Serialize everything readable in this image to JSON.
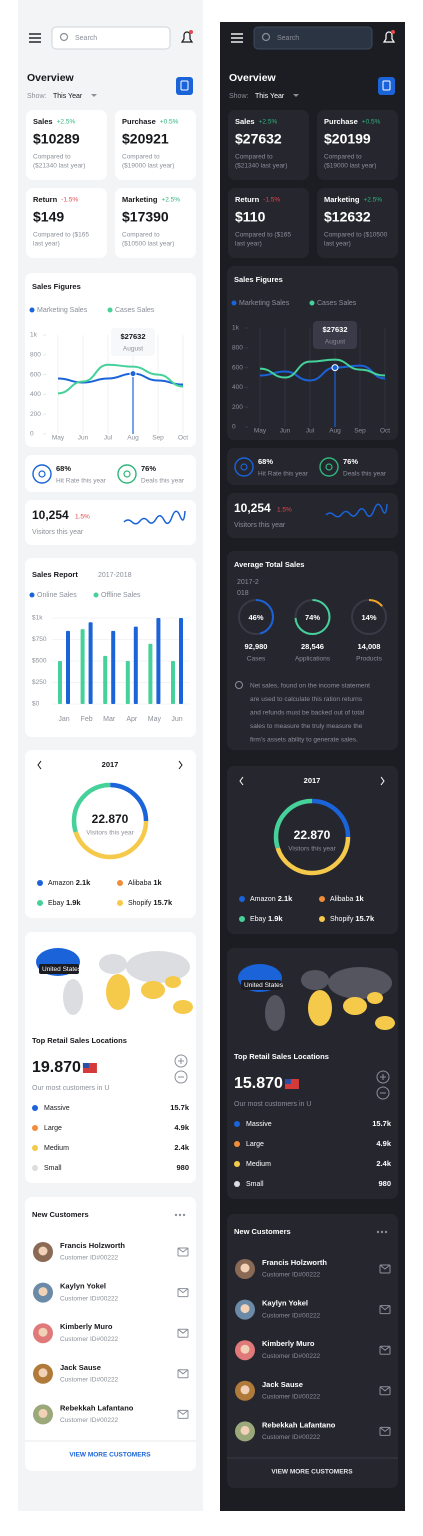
{
  "panels": {
    "light": {
      "search": "Search",
      "overview": {
        "title": "Overview",
        "show_label": "Show:",
        "show_value": "This Year"
      },
      "stats": [
        {
          "label": "Sales",
          "change": "+2.5%",
          "value": "$10289",
          "note": [
            "Compared to",
            "($21340 last year)"
          ]
        },
        {
          "label": "Purchase",
          "change": "+0.5%",
          "value": "$20921",
          "note": [
            "Compared to",
            "($19000 last year)"
          ]
        },
        {
          "label": "Return",
          "change": "-1.5%",
          "value": "$149",
          "note": [
            "Compared to ($165",
            "last year)"
          ]
        },
        {
          "label": "Marketing",
          "change": "+2.5%",
          "value": "$17390",
          "note": [
            "Compared to",
            "($10500 last year)"
          ]
        }
      ],
      "sales_figures": {
        "type": "line",
        "title": "Sales Figures",
        "categories": [
          "May",
          "Jun",
          "Jul",
          "Aug",
          "Sep",
          "Oct"
        ],
        "series": [
          {
            "name": "Marketing Sales",
            "color": "#1a63d8",
            "values": [
              560,
              520,
              560,
              610,
              540,
              500
            ]
          },
          {
            "name": "Cases Sales",
            "color": "#45d199",
            "values": [
              410,
              530,
              700,
              680,
              600,
              480
            ]
          }
        ],
        "ylim": [
          0,
          1000
        ],
        "yticks": [
          0,
          200,
          400,
          600,
          800,
          {
            "value": 1000,
            "label": "1k"
          }
        ],
        "tooltip": {
          "value": "$27632",
          "label": "August"
        }
      },
      "kpis": [
        {
          "value": "68%",
          "label": "Hit Rate this year"
        },
        {
          "value": "76%",
          "label": "Deals this year"
        }
      ],
      "visitors": {
        "value": "10,254",
        "change": "1.5%",
        "label": "Visitors this year"
      },
      "sales_report": {
        "type": "bar",
        "title": "Sales Report",
        "period": "2017-2018",
        "categories": [
          "Jan",
          "Feb",
          "Mar",
          "Apr",
          "May",
          "Jun"
        ],
        "series": [
          {
            "name": "Online Sales",
            "color": "#1a63d8",
            "values": [
              850,
              950,
              850,
              900,
              1000,
              1000
            ]
          },
          {
            "name": "Offline Sales",
            "color": "#45d199",
            "values": [
              500,
              870,
              560,
              500,
              700,
              500
            ]
          }
        ],
        "ylim": [
          0,
          1000
        ],
        "yticks": [
          {
            "value": 0,
            "label": "$0"
          },
          {
            "value": 250,
            "label": "$250"
          },
          {
            "value": 500,
            "label": "$500"
          },
          {
            "value": 750,
            "label": "$750"
          },
          {
            "value": 1000,
            "label": "$1k"
          }
        ]
      },
      "donut": {
        "year": "2017",
        "value": "22.870",
        "label": "Visitors this year",
        "items": [
          {
            "name": "Amazon",
            "value": "2.1k"
          },
          {
            "name": "Alibaba",
            "value": "1k"
          },
          {
            "name": "Ebay",
            "value": "1.9k"
          },
          {
            "name": "Shopify",
            "value": "15.7k"
          }
        ]
      },
      "map": {
        "tooltip": "United States"
      },
      "locations": {
        "title": "Top Retail Sales Locations",
        "value": "19.870",
        "note": "Our most customers in U",
        "items": [
          {
            "name": "Massive",
            "value": "15.7k"
          },
          {
            "name": "Large",
            "value": "4.9k"
          },
          {
            "name": "Medium",
            "value": "2.4k"
          },
          {
            "name": "Small",
            "value": "980"
          }
        ]
      },
      "customers": {
        "title": "New Customers",
        "list": [
          {
            "name": "Francis Holzworth",
            "id": "Customer ID#00222"
          },
          {
            "name": "Kaylyn Yokel",
            "id": "Customer ID#00222"
          },
          {
            "name": "Kimberly Muro",
            "id": "Customer ID#00222"
          },
          {
            "name": "Jack Sause",
            "id": "Customer ID#00222"
          },
          {
            "name": "Rebekkah Lafantano",
            "id": "Customer ID#00222"
          }
        ],
        "more": "VIEW MORE CUSTOMERS"
      }
    },
    "dark": {
      "search": "Search",
      "overview": {
        "title": "Overview",
        "show_label": "Show:",
        "show_value": "This Year"
      },
      "stats": [
        {
          "label": "Sales",
          "change": "+2.5%",
          "value": "$27632",
          "note": [
            "Compared to",
            "($21340 last year)"
          ]
        },
        {
          "label": "Purchase",
          "change": "+0.5%",
          "value": "$20199",
          "note": [
            "Compared to",
            "($19000 last year)"
          ]
        },
        {
          "label": "Return",
          "change": "-1.5%",
          "value": "$110",
          "note": [
            "Compared to ($165",
            "last year)"
          ]
        },
        {
          "label": "Marketing",
          "change": "+2.5%",
          "value": "$12632",
          "note": [
            "Compared to ($10500",
            "last year)"
          ]
        }
      ],
      "sales_figures": {
        "type": "line",
        "title": "Sales Figures",
        "categories": [
          "May",
          "Jun",
          "Jul",
          "Aug",
          "Sep",
          "Oct"
        ],
        "series": [
          {
            "name": "Marketing Sales",
            "color": "#1a63d8",
            "values": [
              520,
              560,
              470,
              600,
              620,
              490
            ]
          },
          {
            "name": "Cases Sales",
            "color": "#45d199",
            "values": [
              590,
              500,
              660,
              680,
              580,
              520
            ]
          }
        ],
        "ylim": [
          0,
          1000
        ],
        "yticks": [
          0,
          200,
          400,
          600,
          800,
          {
            "value": 1000,
            "label": "1k"
          }
        ],
        "tooltip": {
          "value": "$27632",
          "label": "August"
        }
      },
      "kpis": [
        {
          "value": "68%",
          "label": "Hit Rate this year"
        },
        {
          "value": "76%",
          "label": "Deals this year"
        }
      ],
      "visitors": {
        "value": "10,254",
        "change": "1.5%",
        "label": "Visitors this year"
      },
      "average": {
        "title": "Average Total Sales",
        "period": [
          "2017-2",
          "018"
        ],
        "items": [
          {
            "value": 46,
            "value_label": "46%",
            "amount": "92,980",
            "label": "Cases",
            "color": "#1a63d8"
          },
          {
            "value": 74,
            "value_label": "74%",
            "amount": "28,546",
            "label": "Applications",
            "color": "#45d199"
          },
          {
            "value": 14,
            "value_label": "14%",
            "amount": "14,008",
            "label": "Products",
            "color": "#f5a524"
          }
        ],
        "note": [
          "Net sales, found on the income statement",
          "are used to calculate this ration returns",
          "and refunds must be backed out of total",
          "sales to measure the truly measure the",
          "firm's assets ability to generate sales."
        ]
      },
      "donut": {
        "year": "2017",
        "value": "22.870",
        "label": "Visitors this year",
        "items": [
          {
            "name": "Amazon",
            "value": "2.1k"
          },
          {
            "name": "Alibaba",
            "value": "1k"
          },
          {
            "name": "Ebay",
            "value": "1.9k"
          },
          {
            "name": "Shopify",
            "value": "15.7k"
          }
        ]
      },
      "map": {
        "tooltip": "United States"
      },
      "locations": {
        "title": "Top Retail Sales Locations",
        "value": "15.870",
        "note": "Our most customers in U",
        "items": [
          {
            "name": "Massive",
            "value": "15.7k"
          },
          {
            "name": "Large",
            "value": "4.9k"
          },
          {
            "name": "Medium",
            "value": "2.4k"
          },
          {
            "name": "Small",
            "value": "980"
          }
        ]
      },
      "customers": {
        "title": "New Customers",
        "list": [
          {
            "name": "Francis Holzworth",
            "id": "Customer ID#00222"
          },
          {
            "name": "Kaylyn Yokel",
            "id": "Customer ID#00222"
          },
          {
            "name": "Kimberly Muro",
            "id": "Customer ID#00222"
          },
          {
            "name": "Jack Sause",
            "id": "Customer ID#00222"
          },
          {
            "name": "Rebekkah Lafantano",
            "id": "Customer ID#00222"
          }
        ],
        "more": "VIEW MORE CUSTOMERS"
      }
    }
  }
}
